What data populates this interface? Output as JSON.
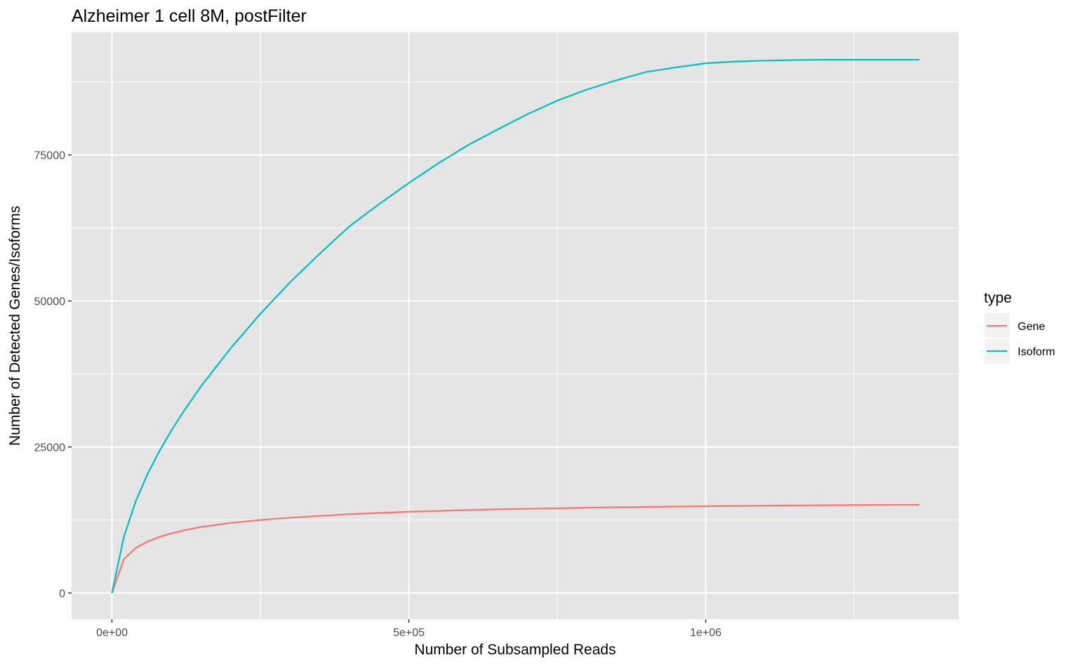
{
  "chart_data": {
    "type": "line",
    "title": "Alzheimer 1 cell 8M, postFilter",
    "xlabel": "Number of Subsampled Reads",
    "ylabel": "Number of Detected Genes/Isoforms",
    "xlim": [
      -68000,
      1426000
    ],
    "ylim": [
      -4500,
      96000
    ],
    "x_ticks": [
      0,
      500000,
      1000000
    ],
    "x_tick_labels": [
      "0e+00",
      "5e+05",
      "1e+06"
    ],
    "y_ticks": [
      0,
      25000,
      50000,
      75000
    ],
    "y_tick_labels": [
      "0",
      "25000",
      "50000",
      "75000"
    ],
    "grid": true,
    "legend": {
      "title": "type",
      "position": "right",
      "entries": [
        "Gene",
        "Isoform"
      ]
    },
    "x": [
      0,
      20000,
      40000,
      60000,
      80000,
      100000,
      120000,
      150000,
      200000,
      250000,
      300000,
      350000,
      400000,
      450000,
      500000,
      550000,
      600000,
      650000,
      700000,
      750000,
      800000,
      850000,
      900000,
      950000,
      1000000,
      1050000,
      1100000,
      1150000,
      1200000,
      1250000,
      1300000,
      1360000
    ],
    "series": [
      {
        "name": "Gene",
        "color": "#F8766D",
        "values": [
          0,
          5800,
          7700,
          8800,
          9600,
          10200,
          10700,
          11300,
          12000,
          12500,
          12900,
          13200,
          13500,
          13700,
          13900,
          14050,
          14200,
          14320,
          14420,
          14500,
          14600,
          14680,
          14740,
          14800,
          14860,
          14900,
          14950,
          14990,
          15020,
          15050,
          15080,
          15100
        ]
      },
      {
        "name": "Isoform",
        "color": "#00BFC4",
        "values": [
          0,
          9600,
          15700,
          20400,
          24300,
          27800,
          31000,
          35400,
          41900,
          47800,
          53200,
          58100,
          62800,
          66600,
          70200,
          73600,
          76700,
          79400,
          82000,
          84300,
          86200,
          87800,
          89200,
          90000,
          90700,
          91000,
          91150,
          91250,
          91300,
          91300,
          91300,
          91300
        ]
      }
    ]
  },
  "layout": {
    "panel_bg": "#E5E5E5",
    "grid_color": "#FFFFFF"
  }
}
